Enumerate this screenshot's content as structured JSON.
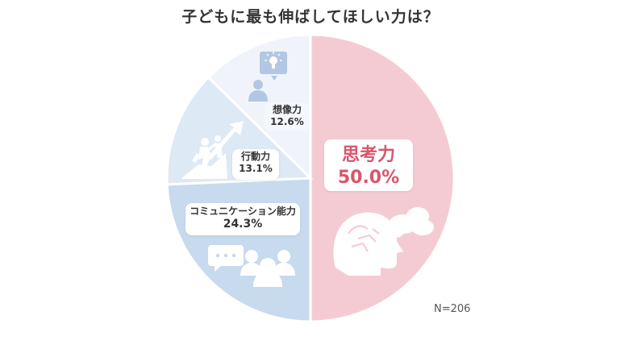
{
  "chart_data": {
    "type": "pie",
    "title": "子どもに最も伸ばしてほしい力は？",
    "categories": [
      "思考力",
      "コミュニケーション能力",
      "行動力",
      "想像力"
    ],
    "values": [
      50.0,
      24.3,
      13.1,
      12.6
    ],
    "value_labels": [
      "50.0%",
      "24.3%",
      "13.1%",
      "12.6%"
    ],
    "colors": [
      "#f5cbd3",
      "#c7daee",
      "#dde9f5",
      "#f0f4fa"
    ],
    "start": "12 o'clock",
    "direction": "clockwise",
    "note": "N=206"
  },
  "icons": [
    "brain-thought-icon",
    "chat-people-icon",
    "climbing-arrow-icon",
    "idea-person-icon"
  ]
}
